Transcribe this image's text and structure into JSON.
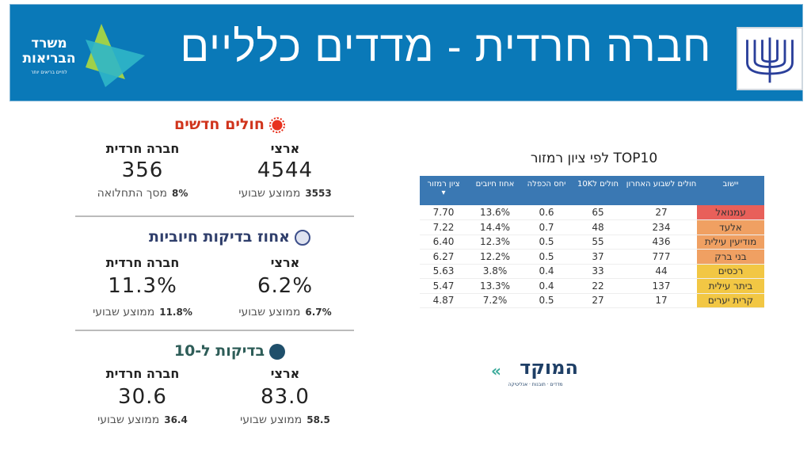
{
  "header": {
    "title": "חברה חרדית - מדדים כלליים",
    "moh_logo_text": "משרד הבריאות",
    "moh_logo_sub": "לחיים בריאים יותר",
    "emblem": "ministry-emblem"
  },
  "sections": [
    {
      "title": "חולים חדשים",
      "icon": "virus-icon",
      "color": "#d0341c",
      "national": {
        "label": "ארצי",
        "value": "4544",
        "sub_value": "3553",
        "sub_label": "ממוצע שבועי"
      },
      "haredi": {
        "label": "חברה חרדית",
        "value": "356",
        "sub_value": "8%",
        "sub_label": "מסך התחלואה"
      }
    },
    {
      "title": "אחוז בדיקות חיוביות",
      "icon": "lab-test-icon",
      "color": "#2f3e6b",
      "national": {
        "label": "ארצי",
        "value": "6.2%",
        "sub_value": "6.7%",
        "sub_label": "ממוצע שבועי"
      },
      "haredi": {
        "label": "חברה חרדית",
        "value": "11.3%",
        "sub_value": "11.8%",
        "sub_label": "ממוצע שבועי"
      }
    },
    {
      "title": "בדיקות ל-10",
      "icon": "people-icon",
      "color": "#2e5d58",
      "national": {
        "label": "ארצי",
        "value": "83.0",
        "sub_value": "58.5",
        "sub_label": "ממוצע שבועי"
      },
      "haredi": {
        "label": "חברה חרדית",
        "value": "30.6",
        "sub_value": "36.4",
        "sub_label": "ממוצע שבועי"
      }
    }
  ],
  "table": {
    "title": "TOP10 לפי ציון רמזור",
    "headers": [
      "יישוב",
      "חולים לשבוע האחרון",
      "חולים ל10K",
      "יחס הכפלה",
      "אחוז חיובים",
      "ציון רמזור"
    ],
    "sort_indicator": "▾",
    "rows": [
      [
        "עמנואל",
        "27",
        "65",
        "0.6",
        "13.6%",
        "7.70",
        "#e8605a"
      ],
      [
        "אלעד",
        "234",
        "48",
        "0.7",
        "14.4%",
        "7.22",
        "#f0a062"
      ],
      [
        "מודיעין עילית",
        "436",
        "55",
        "0.5",
        "12.3%",
        "6.40",
        "#f0a062"
      ],
      [
        "בני ברק",
        "777",
        "37",
        "0.5",
        "12.2%",
        "6.27",
        "#f0a062"
      ],
      [
        "רכסים",
        "44",
        "33",
        "0.4",
        "3.8%",
        "5.63",
        "#f2c744"
      ],
      [
        "ביתר עילית",
        "137",
        "22",
        "0.4",
        "13.3%",
        "5.47",
        "#f2c744"
      ],
      [
        "קרית יערים",
        "17",
        "27",
        "0.5",
        "7.2%",
        "4.87",
        "#f2c744"
      ]
    ]
  },
  "footer_logo": {
    "name": "המוקד",
    "tagline": "מדדים · תובנות · אנליטיקה"
  }
}
